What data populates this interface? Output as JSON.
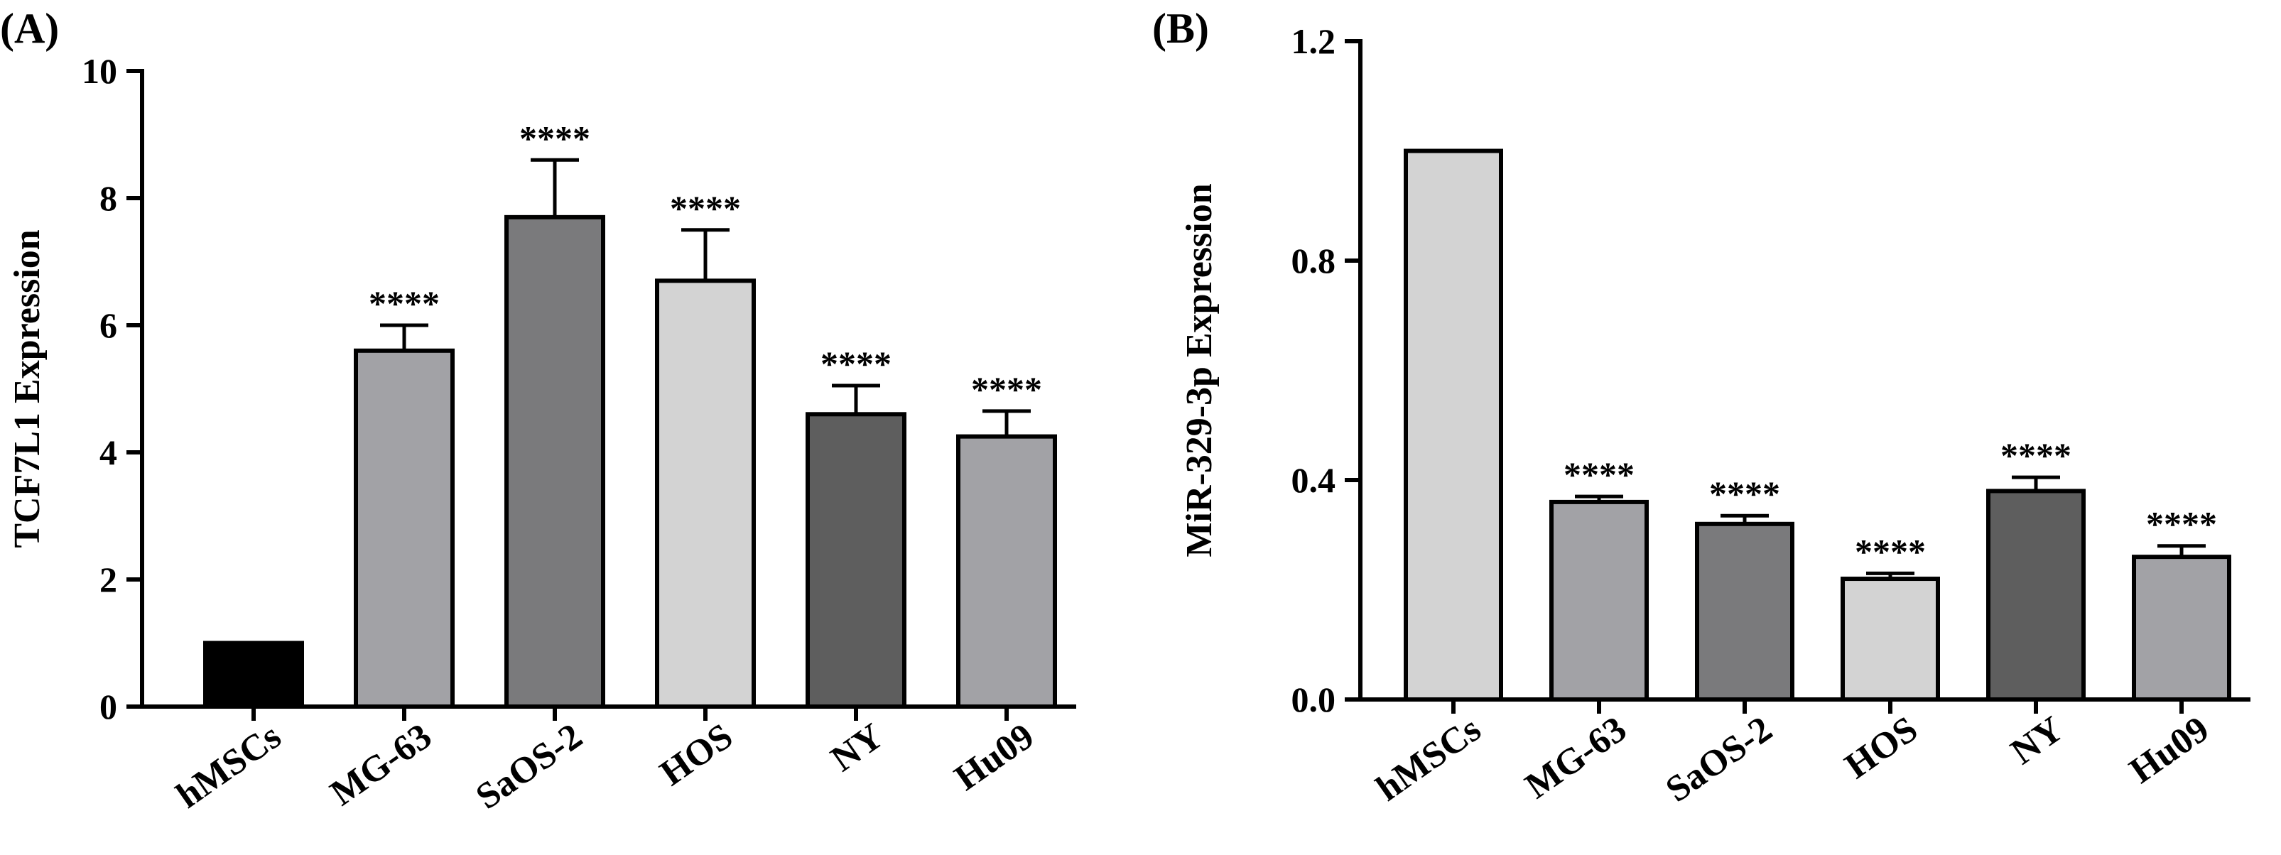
{
  "chart_data": [
    {
      "type": "bar",
      "panel_label": "(A)",
      "title": "",
      "xlabel": "",
      "ylabel": "TCF7L1 Expression",
      "ylim": [
        0,
        10
      ],
      "yticks": [
        0,
        2,
        4,
        6,
        8,
        10
      ],
      "ytick_labels": [
        "0",
        "2",
        "4",
        "6",
        "8",
        "10"
      ],
      "categories": [
        "hMSCs",
        "MG-63",
        "SaOS-2",
        "HOS",
        "NY",
        "Hu09"
      ],
      "values": [
        1.0,
        5.6,
        7.7,
        6.7,
        4.6,
        4.25
      ],
      "errors": [
        0,
        0.4,
        0.9,
        0.8,
        0.45,
        0.4
      ],
      "significance": [
        "",
        "****",
        "****",
        "****",
        "****",
        "****"
      ],
      "colors": [
        "#000000",
        "#a2a2a6",
        "#7a7a7c",
        "#d3d3d3",
        "#5e5e5e",
        "#a2a2a6"
      ]
    },
    {
      "type": "bar",
      "panel_label": "(B)",
      "title": "",
      "xlabel": "",
      "ylabel": "MiR-329-3p Expression",
      "ylim": [
        0,
        1.2
      ],
      "yticks": [
        0,
        0.4,
        0.8,
        1.2
      ],
      "ytick_labels": [
        "0.0",
        "0.4",
        "0.8",
        "1.2"
      ],
      "categories": [
        "hMSCs",
        "MG-63",
        "SaOS-2",
        "HOS",
        "NY",
        "Hu09"
      ],
      "values": [
        1.0,
        0.36,
        0.32,
        0.22,
        0.38,
        0.26
      ],
      "errors": [
        0,
        0.01,
        0.015,
        0.01,
        0.025,
        0.02
      ],
      "significance": [
        "",
        "****",
        "****",
        "****",
        "****",
        "****"
      ],
      "colors": [
        "#d3d3d3",
        "#a2a2a6",
        "#7a7a7c",
        "#d3d3d3",
        "#5e5e5e",
        "#a2a2a6"
      ]
    }
  ]
}
